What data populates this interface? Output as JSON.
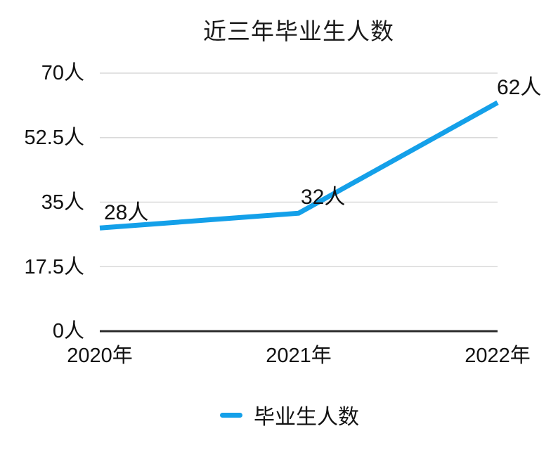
{
  "chart_data": {
    "type": "line",
    "title": "近三年毕业生人数",
    "categories": [
      "2020年",
      "2021年",
      "2022年"
    ],
    "series": [
      {
        "name": "毕业生人数",
        "values": [
          28,
          32,
          62
        ]
      }
    ],
    "point_labels": [
      "28人",
      "32人",
      "62人"
    ],
    "ytick_labels": [
      "70人",
      "52.5人",
      "35人",
      "17.5人",
      "0人"
    ],
    "ytick_values": [
      70,
      52.5,
      35,
      17.5,
      0
    ],
    "ylim": [
      0,
      70
    ],
    "unit": "人",
    "grid": true,
    "legend": {
      "label": "毕业生人数",
      "position": "bottom"
    },
    "colors": {
      "line": "#14a0e9",
      "grid": "#d9d9d9",
      "axis": "#2b2b2b",
      "text": "#111111",
      "background": "#ffffff"
    }
  }
}
